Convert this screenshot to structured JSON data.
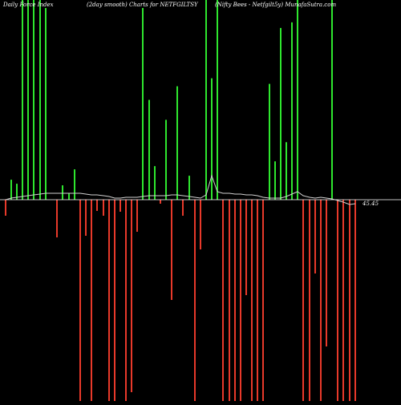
{
  "header": {
    "left": "Daily Force Index",
    "center": "(2day smooth) Charts for NETFGILTSY",
    "right": "(Nifty Bees - Netfgilt5y) MunafaSutra.com"
  },
  "chart_data": {
    "type": "bar",
    "title": "(2day smooth) Charts for NETFGILTSY",
    "zero_label": "45.45",
    "colors": {
      "positive": "#2ee62e",
      "negative": "#e8392a",
      "background": "#000000",
      "baseline": "#ffffff",
      "line": "#cfcfcf"
    },
    "ylim": [
      -251,
      250
    ],
    "x": [
      7,
      14,
      21,
      28,
      35,
      42,
      50,
      57,
      64,
      71,
      78,
      86,
      93,
      100,
      107,
      114,
      121,
      129,
      136,
      143,
      150,
      157,
      164,
      171,
      178,
      186,
      193,
      200,
      207,
      214,
      221,
      228,
      236,
      243,
      250,
      257,
      264,
      271,
      278,
      286,
      293,
      300,
      307,
      314,
      321,
      328,
      336,
      343,
      350,
      357,
      364,
      371,
      378,
      386,
      393,
      400,
      407,
      414,
      421,
      428,
      436,
      443
    ],
    "values": [
      -20,
      25,
      20,
      250,
      250,
      250,
      250,
      240,
      0,
      -47,
      18,
      8,
      38,
      -251,
      -45,
      -251,
      -14,
      -20,
      -251,
      -251,
      -15,
      -251,
      -240,
      -40,
      240,
      125,
      42,
      -5,
      100,
      -125,
      142,
      -20,
      30,
      -251,
      -62,
      250,
      152,
      250,
      -251,
      -251,
      -251,
      -251,
      -119,
      -251,
      -251,
      -251,
      145,
      48,
      215,
      72,
      222,
      250,
      -251,
      -251,
      -92,
      -251,
      -183,
      250,
      -251,
      -251,
      -251,
      -251
    ],
    "series": [
      {
        "values": [
          0,
          2,
          3,
          4,
          5,
          6,
          7,
          8,
          8,
          8,
          8,
          8,
          8,
          8,
          7,
          6,
          6,
          5,
          4,
          2,
          2,
          3,
          3,
          3,
          4,
          5,
          5,
          5,
          5,
          6,
          6,
          5,
          4,
          3,
          2,
          6,
          30,
          10,
          8,
          8,
          7,
          7,
          6,
          6,
          5,
          3,
          2,
          2,
          2,
          4,
          7,
          10,
          5,
          3,
          2,
          3,
          2,
          1,
          -1,
          -3,
          -6,
          -5
        ]
      }
    ]
  }
}
